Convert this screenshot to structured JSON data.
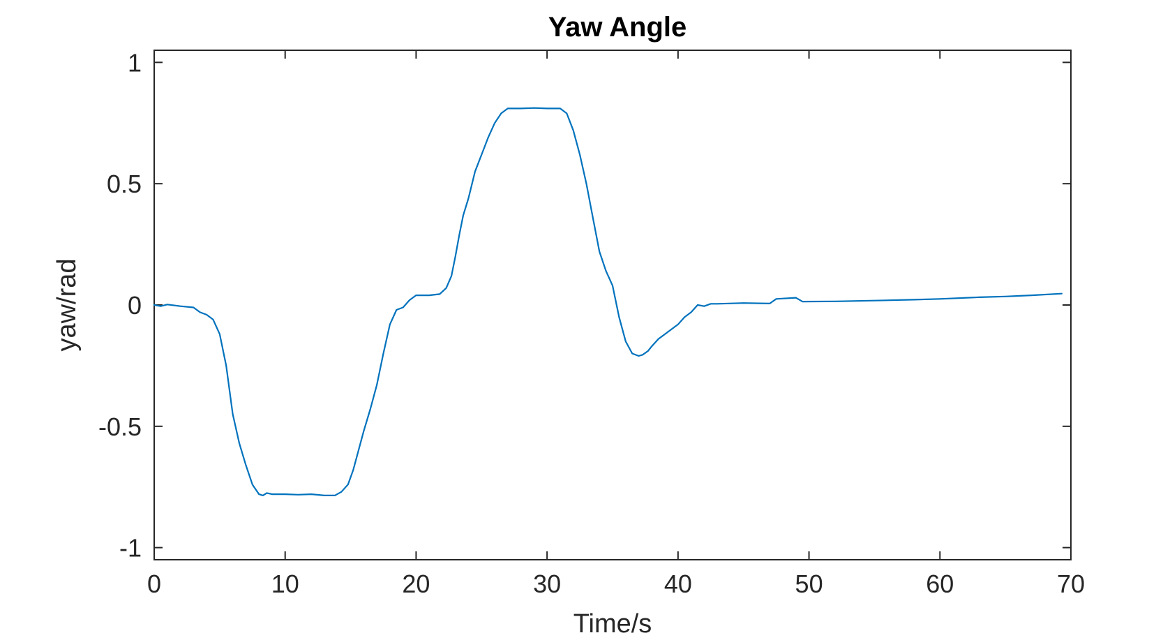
{
  "chart_data": {
    "type": "line",
    "title": "Yaw Angle",
    "xlabel": "Time/s",
    "ylabel": "yaw/rad",
    "xlim": [
      0,
      70
    ],
    "ylim": [
      -1.05,
      1.05
    ],
    "xticks": [
      0,
      10,
      20,
      30,
      40,
      50,
      60,
      70
    ],
    "xtick_labels": [
      "0",
      "10",
      "20",
      "30",
      "40",
      "50",
      "60",
      "70"
    ],
    "yticks": [
      -1,
      -0.5,
      0,
      0.5,
      1
    ],
    "ytick_labels": [
      "-1",
      "-0.5",
      "0",
      "0.5",
      "1"
    ],
    "grid": false,
    "legend": "none",
    "series_color": "#0072BD",
    "series": [
      {
        "x": [
          0,
          0.5,
          1,
          2,
          3,
          3.5,
          4,
          4.5,
          5,
          5.5,
          6,
          6.5,
          7,
          7.5,
          8,
          8.3,
          8.6,
          9,
          10,
          11,
          12,
          13,
          13.8,
          14.3,
          14.8,
          15.2,
          15.6,
          16,
          16.5,
          17,
          17.5,
          18,
          18.5,
          19,
          19.5,
          20,
          21,
          21.8,
          22.3,
          22.7,
          23,
          23.3,
          23.6,
          24,
          24.5,
          25,
          25.5,
          26,
          26.5,
          27,
          28,
          29,
          30,
          31,
          31.5,
          32,
          32.5,
          33,
          33.5,
          34,
          34.5,
          35,
          35.5,
          36,
          36.5,
          37,
          37.3,
          37.7,
          38,
          38.5,
          39,
          39.5,
          40,
          40.5,
          41,
          41.5,
          42,
          42.5,
          43,
          45,
          47,
          47.5,
          49,
          49.5,
          52,
          55,
          58,
          60,
          63,
          65,
          67,
          69.3
        ],
        "y": [
          0,
          -0.005,
          0.002,
          -0.005,
          -0.01,
          -0.03,
          -0.04,
          -0.06,
          -0.12,
          -0.25,
          -0.45,
          -0.57,
          -0.66,
          -0.74,
          -0.78,
          -0.785,
          -0.775,
          -0.78,
          -0.78,
          -0.782,
          -0.78,
          -0.785,
          -0.785,
          -0.77,
          -0.74,
          -0.68,
          -0.6,
          -0.52,
          -0.43,
          -0.33,
          -0.2,
          -0.08,
          -0.02,
          -0.01,
          0.02,
          0.04,
          0.04,
          0.045,
          0.07,
          0.12,
          0.2,
          0.29,
          0.37,
          0.44,
          0.55,
          0.62,
          0.69,
          0.75,
          0.79,
          0.81,
          0.81,
          0.812,
          0.81,
          0.81,
          0.79,
          0.72,
          0.62,
          0.5,
          0.36,
          0.22,
          0.14,
          0.08,
          -0.05,
          -0.15,
          -0.2,
          -0.21,
          -0.205,
          -0.19,
          -0.17,
          -0.14,
          -0.12,
          -0.1,
          -0.08,
          -0.05,
          -0.03,
          0,
          -0.005,
          0.005,
          0.005,
          0.008,
          0.006,
          0.025,
          0.03,
          0.014,
          0.015,
          0.018,
          0.022,
          0.025,
          0.032,
          0.035,
          0.04,
          0.047
        ]
      }
    ]
  }
}
